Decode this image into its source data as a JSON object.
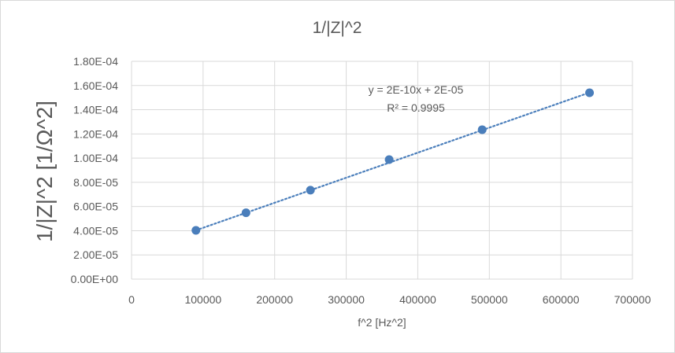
{
  "chart_data": {
    "type": "scatter",
    "title": "1/|Z|^2",
    "xlabel": "f^2 [Hz^2]",
    "ylabel": "1/|Z|^2 [1/Ω^2]",
    "xlim": [
      0,
      700000
    ],
    "ylim": [
      0,
      0.00018
    ],
    "x_ticks": [
      "0",
      "100000",
      "200000",
      "300000",
      "400000",
      "500000",
      "600000",
      "700000"
    ],
    "y_ticks": [
      "0.00E+00",
      "2.00E-05",
      "4.00E-05",
      "6.00E-05",
      "8.00E-05",
      "1.00E-04",
      "1.20E-04",
      "1.40E-04",
      "1.60E-04",
      "1.80E-04"
    ],
    "grid": true,
    "series": [
      {
        "name": "1/|Z|^2",
        "color": "#4a7ebb",
        "x": [
          90000,
          160000,
          250000,
          360000,
          490000,
          640000
        ],
        "y": [
          4.03e-05,
          5.48e-05,
          7.35e-05,
          9.88e-05,
          0.0001235,
          0.000154
        ]
      }
    ],
    "trendline": {
      "type": "linear",
      "style": "dotted",
      "color": "#4a7ebb",
      "slope": 2.07e-10,
      "intercept": 2.17e-05,
      "x_range": [
        90000,
        640000
      ],
      "equation": "y = 2E-10x + 2E-05",
      "r_squared": "R² = 0.9995"
    }
  }
}
